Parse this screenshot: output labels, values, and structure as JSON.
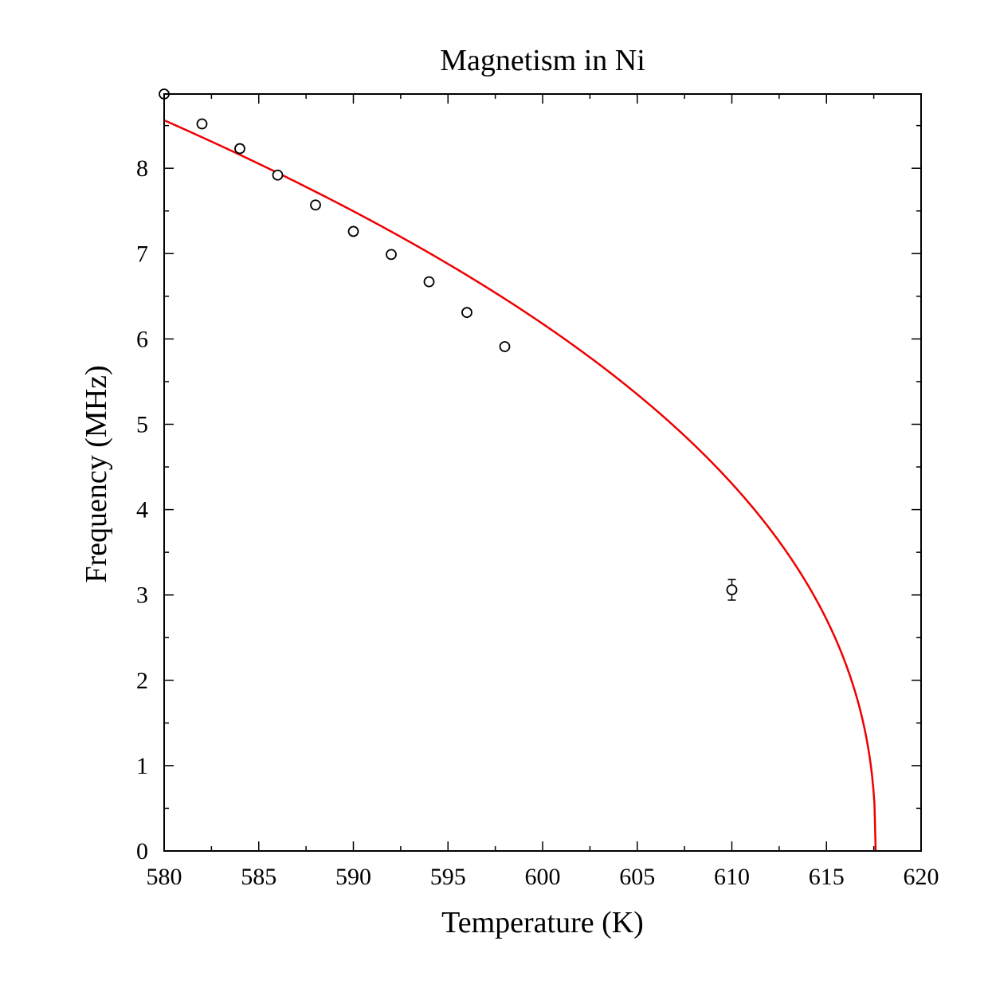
{
  "chart_data": {
    "type": "scatter",
    "title": "Magnetism in Ni",
    "xlabel": "Temperature (K)",
    "ylabel": "Frequency (MHz)",
    "xlim": [
      580,
      620
    ],
    "ylim": [
      0,
      8.87
    ],
    "xticks": [
      580,
      585,
      590,
      595,
      600,
      605,
      610,
      615,
      620
    ],
    "yticks": [
      0,
      1,
      2,
      3,
      4,
      5,
      6,
      7,
      8
    ],
    "grid": false,
    "series": [
      {
        "kind": "points",
        "color": "#000000",
        "points": [
          {
            "x": 580,
            "y": 8.87,
            "err": 0
          },
          {
            "x": 582,
            "y": 8.52,
            "err": 0
          },
          {
            "x": 584,
            "y": 8.23,
            "err": 0
          },
          {
            "x": 586,
            "y": 7.92,
            "err": 0
          },
          {
            "x": 588,
            "y": 7.57,
            "err": 0
          },
          {
            "x": 590,
            "y": 7.26,
            "err": 0
          },
          {
            "x": 592,
            "y": 6.99,
            "err": 0
          },
          {
            "x": 594,
            "y": 6.67,
            "err": 0
          },
          {
            "x": 596,
            "y": 6.31,
            "err": 0
          },
          {
            "x": 598,
            "y": 5.91,
            "err": 0
          },
          {
            "x": 610,
            "y": 3.06,
            "err": 0.12
          }
        ]
      },
      {
        "kind": "fit",
        "color": "#ee0000",
        "Tc": 617.6,
        "A": 1.8,
        "beta": 0.43,
        "x_start": 580
      }
    ]
  }
}
